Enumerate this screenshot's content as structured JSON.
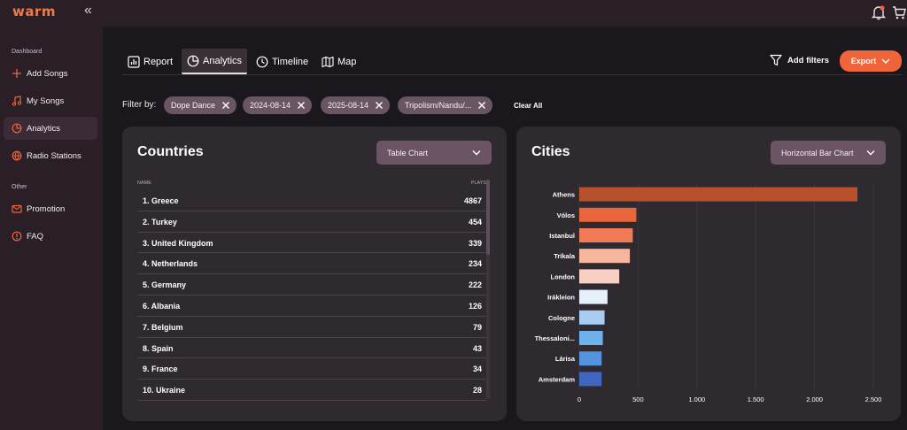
{
  "app": {
    "logo": "warm",
    "collapse_icon": "«"
  },
  "sidebar": {
    "sections": {
      "dashboard": "Dashboard",
      "other": "Other"
    },
    "items": [
      {
        "label": "Add Songs",
        "icon": "plus-icon"
      },
      {
        "label": "My Songs",
        "icon": "music-note-icon"
      },
      {
        "label": "Analytics",
        "icon": "pie-chart-icon"
      },
      {
        "label": "Radio Stations",
        "icon": "globe-icon"
      },
      {
        "label": "Promotion",
        "icon": "mail-icon"
      },
      {
        "label": "FAQ",
        "icon": "info-icon"
      }
    ]
  },
  "tabs": [
    {
      "label": "Report",
      "icon": "bar-chart-icon"
    },
    {
      "label": "Analytics",
      "icon": "pie-chart-icon"
    },
    {
      "label": "Timeline",
      "icon": "clock-icon"
    },
    {
      "label": "Map",
      "icon": "map-icon"
    }
  ],
  "toolbar": {
    "add_filters": "Add filters",
    "export": "Export"
  },
  "filters": {
    "label": "Filter by:",
    "chips": [
      "Dope Dance",
      "2024-08-14",
      "2025-08-14",
      "Tripolism/Nandu/..."
    ],
    "clear_all": "Clear All"
  },
  "countries": {
    "title": "Countries",
    "view_select": "Table Chart",
    "columns": {
      "name": "NAME",
      "plays": "PLAYS"
    },
    "rows": [
      {
        "name": "1. Greece",
        "plays": "4867"
      },
      {
        "name": "2. Turkey",
        "plays": "454"
      },
      {
        "name": "3. United Kingdom",
        "plays": "339"
      },
      {
        "name": "4. Netherlands",
        "plays": "234"
      },
      {
        "name": "5. Germany",
        "plays": "222"
      },
      {
        "name": "6. Albania",
        "plays": "126"
      },
      {
        "name": "7. Belgium",
        "plays": "79"
      },
      {
        "name": "8. Spain",
        "plays": "43"
      },
      {
        "name": "9. France",
        "plays": "34"
      },
      {
        "name": "10. Ukraine",
        "plays": "28"
      }
    ]
  },
  "cities": {
    "title": "Cities",
    "view_select": "Horizontal Bar Chart"
  },
  "colors": {
    "accent": "#f0643a",
    "bar_colors": [
      "#b8512b",
      "#e9653b",
      "#f07b56",
      "#f7b79d",
      "#f7cfc3",
      "#e5f0fb",
      "#a9cdf2",
      "#6fb1ec",
      "#5493e0",
      "#3f66c0"
    ]
  },
  "chart_data": {
    "type": "bar",
    "orientation": "horizontal",
    "categories": [
      "Athens",
      "Vólos",
      "Istanbul",
      "Tríkala",
      "London",
      "Irákleion",
      "Cologne",
      "Thessaloni...",
      "Lárisa",
      "Amsterdam"
    ],
    "values": [
      2365,
      485,
      455,
      430,
      340,
      240,
      215,
      200,
      190,
      190
    ],
    "xlim": [
      0,
      2500
    ],
    "xticks": [
      "0",
      "500",
      "1.000",
      "1.500",
      "2.000",
      "2.500"
    ],
    "tick_values": [
      0,
      500,
      1000,
      1500,
      2000,
      2500
    ],
    "grid": true
  }
}
